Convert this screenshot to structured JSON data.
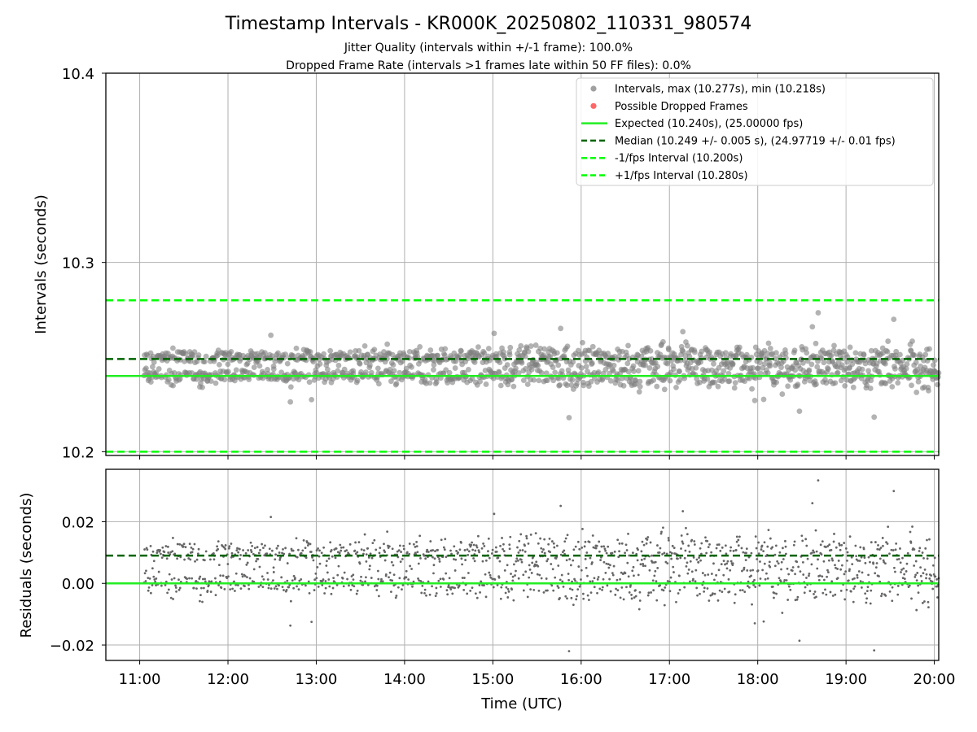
{
  "title": "Timestamp Intervals - KR000K_20250802_110331_980574",
  "subtitle_1": "Jitter Quality (intervals within +/-1 frame): 100.0%",
  "subtitle_2": "Dropped Frame Rate (intervals >1 frames late within 50 FF files): 0.0%",
  "colors": {
    "scatter": "#808080",
    "dropped": "#ff5555",
    "expected": "#22ee22",
    "median": "#006400",
    "interval_bounds": "#00ff00",
    "grid": "#b0b0b0"
  },
  "chart_data": [
    {
      "type": "scatter",
      "ylabel": "Intervals (seconds)",
      "xlabel": "",
      "xlim": [
        "10:37",
        "20:03"
      ],
      "ylim": [
        10.198,
        10.4
      ],
      "x_ticks": [
        "11:00",
        "12:00",
        "13:00",
        "14:00",
        "15:00",
        "16:00",
        "17:00",
        "18:00",
        "19:00",
        "20:00"
      ],
      "y_ticks": [
        "10.2",
        "10.3",
        "10.4"
      ],
      "grid": true,
      "legend_position": "top-right",
      "legend": [
        {
          "label": "Intervals, max (10.277s), min (10.218s)",
          "kind": "marker",
          "color": "#a0a0a0"
        },
        {
          "label": "Possible Dropped Frames",
          "kind": "marker",
          "color": "#ff6666"
        },
        {
          "label": "Expected (10.240s), (25.00000 fps)",
          "kind": "solid",
          "color": "#22ee22"
        },
        {
          "label": "Median (10.249 +/- 0.005 s), (24.97719 +/- 0.01 fps)",
          "kind": "dashed",
          "color": "#006400"
        },
        {
          "label": "-1/fps Interval (10.200s)",
          "kind": "dashed",
          "color": "#00ff00"
        },
        {
          "label": "+1/fps Interval (10.280s)",
          "kind": "dashed",
          "color": "#00ff00"
        }
      ],
      "reference_lines": {
        "expected": 10.24,
        "median": 10.249,
        "minus_one_frame": 10.2,
        "plus_one_frame": 10.28
      },
      "series": [
        {
          "name": "Intervals, max (10.277s), min (10.218s)",
          "x_range": [
            "11:03",
            "20:03"
          ],
          "center_values": [
            10.24,
            10.25
          ],
          "spread": 0.005,
          "max": 10.277,
          "min": 10.218
        },
        {
          "name": "Possible Dropped Frames",
          "values": []
        }
      ]
    },
    {
      "type": "scatter",
      "ylabel": "Residuals (seconds)",
      "xlabel": "Time (UTC)",
      "xlim": [
        "10:37",
        "20:03"
      ],
      "ylim": [
        -0.025,
        0.037
      ],
      "x_ticks": [
        "11:00",
        "12:00",
        "13:00",
        "14:00",
        "15:00",
        "16:00",
        "17:00",
        "18:00",
        "19:00",
        "20:00"
      ],
      "y_ticks": [
        "0.02",
        "0.00",
        "−0.02"
      ],
      "grid": true,
      "reference_lines": {
        "expected": 0.0,
        "median": 0.009
      },
      "series": [
        {
          "x_range": [
            "11:03",
            "20:03"
          ],
          "center_values": [
            0.0,
            0.01
          ],
          "spread": 0.005,
          "max": 0.037,
          "min": -0.022
        }
      ]
    }
  ]
}
